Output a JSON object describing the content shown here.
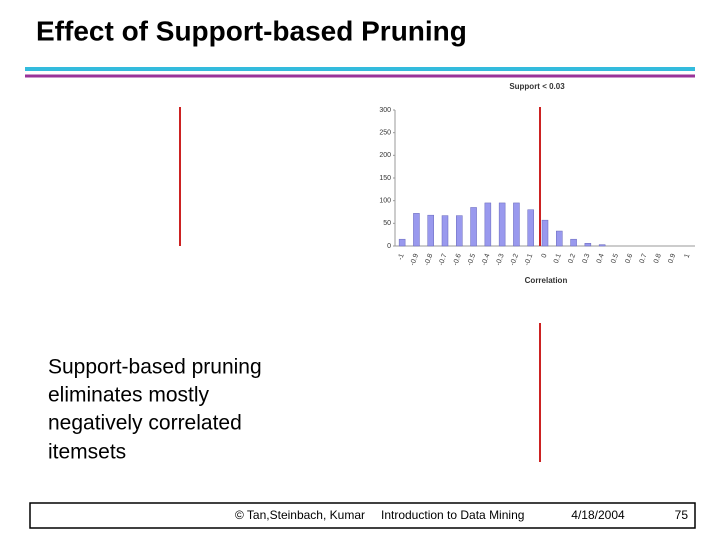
{
  "slide": {
    "title": "Effect of Support-based Pruning",
    "body": [
      "Support-based pruning",
      "eliminates mostly",
      "negatively correlated",
      "itemsets"
    ],
    "footer": {
      "authors": "© Tan,Steinbach, Kumar",
      "course": "Introduction to Data Mining",
      "date": "4/18/2004",
      "page": "75"
    }
  },
  "chart_data": {
    "type": "bar",
    "title": "Support < 0.03",
    "x_label": "Correlation",
    "categories": [
      "-1",
      "-0.9",
      "-0.8",
      "-0.7",
      "-0.6",
      "-0.5",
      "-0.4",
      "-0.3",
      "-0.2",
      "-0.1",
      "0",
      "0.1",
      "0.2",
      "0.3",
      "0.4",
      "0.5",
      "0.6",
      "0.7",
      "0.8",
      "0.9",
      "1"
    ],
    "values": [
      15,
      72,
      68,
      67,
      67,
      85,
      95,
      95,
      95,
      80,
      57,
      33,
      15,
      6,
      3,
      0,
      0,
      0,
      0,
      0,
      0
    ],
    "color": "#9999ee",
    "ylim": [
      0,
      300
    ],
    "yticks": [
      0,
      50,
      100,
      150,
      200,
      250,
      300
    ],
    "grid": false
  }
}
